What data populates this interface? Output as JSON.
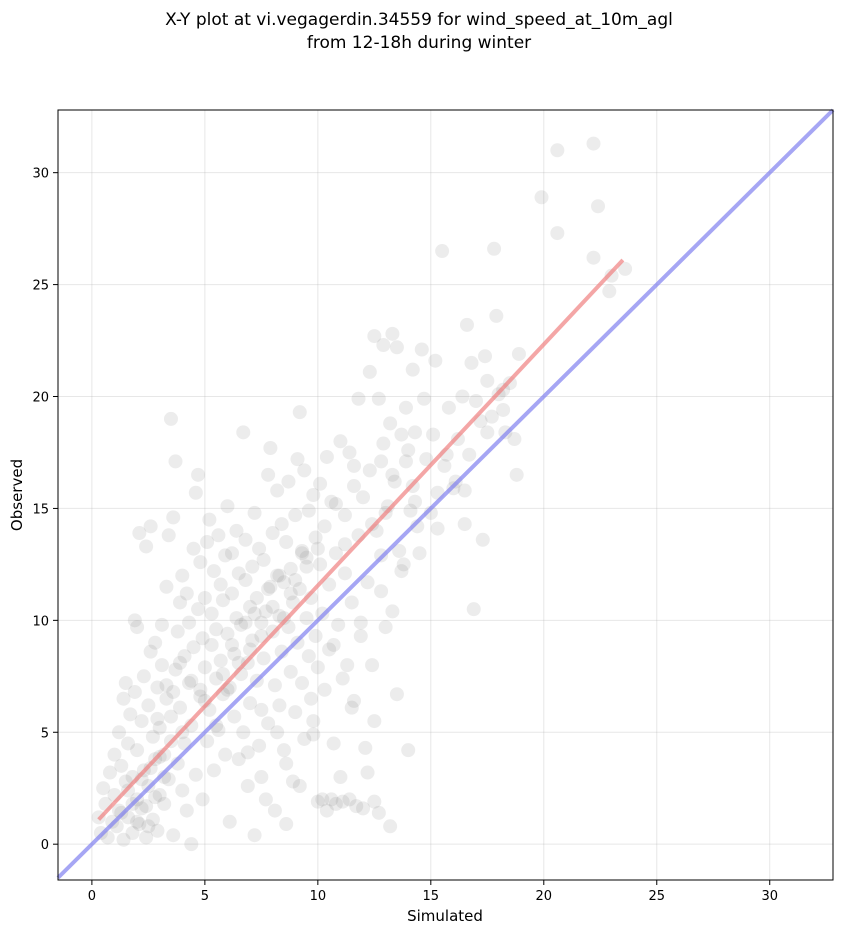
{
  "chart_data": {
    "type": "scatter",
    "title_line1": "X-Y plot at vi.vegagerdin.34559 for wind_speed_at_10m_agl",
    "title_line2": "from 12-18h during winter",
    "xlabel": "Simulated",
    "ylabel": "Observed",
    "xlim": [
      -1.5,
      32.8
    ],
    "ylim": [
      -1.6,
      32.8
    ],
    "xticks": [
      0,
      5,
      10,
      15,
      20,
      25,
      30
    ],
    "yticks": [
      0,
      5,
      10,
      15,
      20,
      25,
      30
    ],
    "grid": true,
    "point_color": "#808080",
    "point_opacity": 0.15,
    "fit_line": {
      "color": "#f08080",
      "x": [
        0.3,
        23.5
      ],
      "y": [
        1.1,
        26.1
      ]
    },
    "identity_line": {
      "color": "#8080f0",
      "x": [
        -1.5,
        32.8
      ],
      "y": [
        -1.5,
        32.8
      ]
    },
    "points": [
      [
        0.3,
        1.2
      ],
      [
        0.4,
        0.5
      ],
      [
        0.5,
        2.5
      ],
      [
        0.6,
        1.8
      ],
      [
        0.7,
        0.3
      ],
      [
        0.8,
        3.2
      ],
      [
        0.9,
        1.0
      ],
      [
        1.0,
        4.0
      ],
      [
        1.0,
        2.2
      ],
      [
        1.1,
        0.8
      ],
      [
        1.2,
        5.0
      ],
      [
        1.2,
        1.5
      ],
      [
        1.3,
        3.5
      ],
      [
        1.4,
        6.5
      ],
      [
        1.4,
        0.2
      ],
      [
        1.5,
        2.8
      ],
      [
        1.5,
        7.2
      ],
      [
        1.6,
        4.5
      ],
      [
        1.6,
        1.2
      ],
      [
        1.7,
        5.8
      ],
      [
        1.8,
        0.5
      ],
      [
        1.8,
        3.0
      ],
      [
        1.9,
        10.0
      ],
      [
        1.9,
        6.8
      ],
      [
        2.0,
        2.0
      ],
      [
        2.0,
        9.7
      ],
      [
        2.0,
        4.2
      ],
      [
        2.1,
        0.9
      ],
      [
        2.1,
        13.9
      ],
      [
        2.2,
        5.5
      ],
      [
        2.2,
        1.6
      ],
      [
        2.3,
        7.5
      ],
      [
        2.3,
        3.3
      ],
      [
        2.4,
        13.3
      ],
      [
        2.4,
        0.3
      ],
      [
        2.5,
        6.2
      ],
      [
        2.5,
        2.6
      ],
      [
        2.6,
        14.2
      ],
      [
        2.6,
        8.6
      ],
      [
        2.7,
        4.8
      ],
      [
        2.7,
        1.1
      ],
      [
        2.8,
        9.0
      ],
      [
        2.8,
        3.8
      ],
      [
        2.9,
        7.0
      ],
      [
        2.9,
        0.6
      ],
      [
        3.0,
        5.2
      ],
      [
        3.0,
        2.2
      ],
      [
        3.1,
        9.8
      ],
      [
        3.1,
        8.0
      ],
      [
        3.2,
        4.0
      ],
      [
        3.2,
        1.8
      ],
      [
        3.3,
        6.5
      ],
      [
        3.3,
        11.5
      ],
      [
        3.4,
        2.9
      ],
      [
        3.4,
        13.8
      ],
      [
        3.5,
        19.0
      ],
      [
        3.5,
        5.7
      ],
      [
        3.6,
        14.6
      ],
      [
        3.6,
        0.4
      ],
      [
        3.7,
        7.8
      ],
      [
        3.7,
        17.1
      ],
      [
        3.8,
        3.6
      ],
      [
        3.8,
        9.5
      ],
      [
        3.9,
        10.8
      ],
      [
        3.9,
        6.1
      ],
      [
        4.0,
        2.4
      ],
      [
        4.0,
        12.0
      ],
      [
        4.1,
        8.4
      ],
      [
        4.1,
        4.5
      ],
      [
        4.2,
        11.2
      ],
      [
        4.2,
        1.5
      ],
      [
        4.3,
        7.2
      ],
      [
        4.3,
        9.9
      ],
      [
        4.4,
        0.0
      ],
      [
        4.4,
        5.3
      ],
      [
        4.5,
        13.2
      ],
      [
        4.5,
        8.8
      ],
      [
        4.6,
        15.7
      ],
      [
        4.6,
        3.1
      ],
      [
        4.7,
        16.5
      ],
      [
        4.7,
        10.5
      ],
      [
        4.8,
        6.6
      ],
      [
        4.8,
        12.6
      ],
      [
        4.9,
        2.0
      ],
      [
        4.9,
        9.2
      ],
      [
        5.0,
        7.9
      ],
      [
        5.0,
        11.0
      ],
      [
        5.1,
        4.6
      ],
      [
        5.1,
        13.5
      ],
      [
        5.2,
        14.5
      ],
      [
        5.2,
        6.0
      ],
      [
        5.3,
        8.9
      ],
      [
        5.3,
        10.3
      ],
      [
        5.4,
        3.3
      ],
      [
        5.4,
        12.2
      ],
      [
        5.5,
        7.4
      ],
      [
        5.5,
        9.6
      ],
      [
        5.6,
        13.8
      ],
      [
        5.6,
        5.1
      ],
      [
        5.7,
        11.6
      ],
      [
        5.7,
        8.2
      ],
      [
        5.8,
        6.7
      ],
      [
        5.8,
        10.9
      ],
      [
        5.9,
        4.0
      ],
      [
        5.9,
        12.9
      ],
      [
        6.0,
        15.1
      ],
      [
        6.0,
        9.4
      ],
      [
        6.1,
        1.0
      ],
      [
        6.1,
        7.0
      ],
      [
        6.2,
        11.2
      ],
      [
        6.2,
        13.0
      ],
      [
        6.3,
        5.7
      ],
      [
        6.3,
        8.5
      ],
      [
        6.4,
        10.1
      ],
      [
        6.4,
        14.0
      ],
      [
        6.5,
        3.8
      ],
      [
        6.5,
        12.1
      ],
      [
        6.6,
        7.6
      ],
      [
        6.6,
        9.8
      ],
      [
        6.7,
        18.4
      ],
      [
        6.7,
        5.0
      ],
      [
        6.8,
        11.8
      ],
      [
        6.8,
        13.6
      ],
      [
        6.9,
        8.1
      ],
      [
        6.9,
        2.6
      ],
      [
        7.0,
        10.6
      ],
      [
        7.0,
        6.3
      ],
      [
        7.1,
        12.4
      ],
      [
        7.1,
        9.1
      ],
      [
        7.2,
        14.8
      ],
      [
        7.2,
        0.4
      ],
      [
        7.3,
        7.3
      ],
      [
        7.3,
        11.0
      ],
      [
        7.4,
        13.2
      ],
      [
        7.4,
        4.4
      ],
      [
        7.5,
        9.9
      ],
      [
        7.5,
        6.0
      ],
      [
        7.6,
        12.7
      ],
      [
        7.6,
        8.3
      ],
      [
        7.7,
        2.0
      ],
      [
        7.7,
        10.4
      ],
      [
        7.8,
        16.5
      ],
      [
        7.8,
        5.4
      ],
      [
        7.9,
        17.7
      ],
      [
        7.9,
        11.5
      ],
      [
        8.0,
        9.5
      ],
      [
        8.0,
        13.9
      ],
      [
        8.1,
        7.1
      ],
      [
        8.1,
        1.5
      ],
      [
        8.2,
        12.0
      ],
      [
        8.2,
        15.8
      ],
      [
        8.3,
        10.2
      ],
      [
        8.3,
        6.2
      ],
      [
        8.4,
        14.3
      ],
      [
        8.4,
        8.6
      ],
      [
        8.5,
        4.2
      ],
      [
        8.5,
        11.7
      ],
      [
        8.6,
        13.5
      ],
      [
        8.6,
        0.9
      ],
      [
        8.7,
        9.7
      ],
      [
        8.7,
        16.2
      ],
      [
        8.8,
        7.7
      ],
      [
        8.8,
        12.3
      ],
      [
        8.9,
        2.8
      ],
      [
        8.9,
        10.8
      ],
      [
        9.0,
        14.7
      ],
      [
        9.0,
        5.9
      ],
      [
        9.1,
        17.2
      ],
      [
        9.1,
        9.0
      ],
      [
        9.2,
        19.3
      ],
      [
        9.2,
        11.4
      ],
      [
        9.3,
        7.2
      ],
      [
        9.3,
        13.1
      ],
      [
        9.4,
        16.7
      ],
      [
        9.4,
        4.7
      ],
      [
        9.5,
        10.1
      ],
      [
        9.5,
        12.8
      ],
      [
        9.6,
        8.4
      ],
      [
        9.6,
        14.9
      ],
      [
        9.7,
        6.5
      ],
      [
        9.7,
        11.0
      ],
      [
        9.8,
        15.6
      ],
      [
        9.8,
        5.5
      ],
      [
        9.9,
        9.3
      ],
      [
        9.9,
        13.7
      ],
      [
        10.0,
        1.9
      ],
      [
        10.0,
        7.9
      ],
      [
        10.1,
        12.5
      ],
      [
        10.1,
        16.1
      ],
      [
        10.2,
        10.3
      ],
      [
        10.2,
        2.0
      ],
      [
        10.3,
        14.2
      ],
      [
        10.3,
        6.9
      ],
      [
        10.4,
        17.3
      ],
      [
        10.4,
        1.5
      ],
      [
        10.5,
        11.6
      ],
      [
        10.5,
        8.7
      ],
      [
        10.6,
        15.3
      ],
      [
        10.6,
        2.0
      ],
      [
        10.7,
        4.5
      ],
      [
        10.8,
        1.8
      ],
      [
        10.8,
        13.0
      ],
      [
        10.9,
        9.8
      ],
      [
        11.0,
        18.0
      ],
      [
        11.0,
        3.0
      ],
      [
        11.1,
        1.9
      ],
      [
        11.1,
        7.4
      ],
      [
        11.2,
        14.7
      ],
      [
        11.2,
        12.1
      ],
      [
        11.3,
        8.0
      ],
      [
        11.4,
        17.5
      ],
      [
        11.4,
        2.0
      ],
      [
        11.5,
        10.8
      ],
      [
        11.6,
        6.4
      ],
      [
        11.6,
        16.9
      ],
      [
        11.7,
        1.7
      ],
      [
        11.8,
        13.8
      ],
      [
        11.8,
        19.9
      ],
      [
        11.9,
        9.3
      ],
      [
        12.0,
        15.5
      ],
      [
        12.0,
        1.6
      ],
      [
        12.1,
        4.3
      ],
      [
        12.2,
        11.7
      ],
      [
        12.2,
        3.2
      ],
      [
        12.3,
        21.1
      ],
      [
        12.3,
        16.7
      ],
      [
        12.4,
        8.0
      ],
      [
        12.5,
        22.7
      ],
      [
        12.5,
        1.9
      ],
      [
        12.6,
        14.0
      ],
      [
        12.7,
        19.9
      ],
      [
        12.7,
        1.4
      ],
      [
        12.8,
        12.9
      ],
      [
        12.9,
        22.3
      ],
      [
        12.9,
        17.9
      ],
      [
        13.0,
        9.7
      ],
      [
        13.1,
        15.1
      ],
      [
        13.2,
        0.8
      ],
      [
        13.2,
        18.8
      ],
      [
        13.3,
        22.8
      ],
      [
        13.3,
        10.4
      ],
      [
        13.4,
        16.2
      ],
      [
        13.5,
        22.2
      ],
      [
        13.5,
        6.7
      ],
      [
        13.6,
        13.1
      ],
      [
        13.7,
        18.3
      ],
      [
        13.8,
        12.5
      ],
      [
        13.9,
        17.1
      ],
      [
        13.9,
        19.5
      ],
      [
        14.0,
        4.2
      ],
      [
        14.1,
        14.9
      ],
      [
        14.2,
        21.2
      ],
      [
        14.2,
        16.0
      ],
      [
        14.3,
        18.4
      ],
      [
        14.4,
        14.2
      ],
      [
        14.6,
        22.1
      ],
      [
        14.7,
        19.9
      ],
      [
        14.8,
        17.2
      ],
      [
        15.0,
        14.8
      ],
      [
        15.1,
        18.3
      ],
      [
        15.2,
        21.6
      ],
      [
        15.3,
        15.7
      ],
      [
        15.5,
        26.5
      ],
      [
        15.6,
        16.9
      ],
      [
        15.8,
        19.5
      ],
      [
        16.0,
        15.9
      ],
      [
        16.2,
        18.1
      ],
      [
        16.4,
        20.0
      ],
      [
        16.5,
        14.3
      ],
      [
        16.6,
        23.2
      ],
      [
        16.7,
        17.4
      ],
      [
        16.8,
        21.5
      ],
      [
        16.9,
        10.5
      ],
      [
        17.0,
        19.8
      ],
      [
        17.2,
        18.9
      ],
      [
        17.3,
        13.6
      ],
      [
        17.4,
        21.8
      ],
      [
        17.5,
        20.7
      ],
      [
        17.7,
        19.1
      ],
      [
        17.8,
        26.6
      ],
      [
        17.9,
        23.6
      ],
      [
        18.0,
        20.1
      ],
      [
        18.2,
        19.4
      ],
      [
        18.3,
        18.4
      ],
      [
        18.5,
        20.6
      ],
      [
        18.7,
        18.1
      ],
      [
        18.8,
        16.5
      ],
      [
        18.9,
        21.9
      ],
      [
        19.9,
        28.9
      ],
      [
        20.6,
        31.0
      ],
      [
        20.6,
        27.3
      ],
      [
        22.2,
        31.3
      ],
      [
        22.2,
        26.2
      ],
      [
        22.4,
        28.5
      ],
      [
        22.9,
        24.7
      ],
      [
        23.0,
        25.4
      ],
      [
        23.6,
        25.7
      ],
      [
        1.6,
        2.4
      ],
      [
        2.0,
        1.0
      ],
      [
        2.2,
        2.9
      ],
      [
        2.4,
        1.7
      ],
      [
        2.6,
        3.4
      ],
      [
        2.8,
        2.1
      ],
      [
        3.0,
        3.9
      ],
      [
        1.8,
        1.8
      ],
      [
        2.5,
        0.8
      ],
      [
        3.2,
        3.0
      ],
      [
        3.5,
        4.6
      ],
      [
        1.3,
        1.4
      ],
      [
        2.9,
        5.6
      ],
      [
        4.0,
        5.0
      ],
      [
        3.6,
        6.8
      ],
      [
        5.0,
        6.4
      ],
      [
        5.5,
        5.3
      ],
      [
        6.0,
        6.9
      ],
      [
        6.5,
        8.1
      ],
      [
        7.0,
        8.7
      ],
      [
        7.5,
        9.3
      ],
      [
        8.0,
        10.6
      ],
      [
        8.5,
        10.1
      ],
      [
        9.0,
        11.8
      ],
      [
        9.5,
        12.4
      ],
      [
        10.0,
        13.2
      ],
      [
        7.2,
        10.3
      ],
      [
        7.8,
        11.4
      ],
      [
        8.3,
        12.0
      ],
      [
        8.8,
        11.2
      ],
      [
        9.3,
        13.0
      ],
      [
        6.8,
        9.9
      ],
      [
        6.2,
        8.9
      ],
      [
        5.8,
        7.6
      ],
      [
        4.8,
        6.9
      ],
      [
        4.4,
        7.3
      ],
      [
        3.9,
        8.1
      ],
      [
        3.3,
        7.1
      ],
      [
        6.9,
        4.1
      ],
      [
        7.5,
        3.0
      ],
      [
        8.6,
        3.6
      ],
      [
        9.2,
        2.6
      ],
      [
        8.2,
        5.0
      ],
      [
        9.8,
        4.9
      ],
      [
        11.5,
        6.1
      ],
      [
        12.5,
        5.5
      ],
      [
        10.7,
        8.9
      ],
      [
        11.9,
        9.9
      ],
      [
        12.8,
        11.3
      ],
      [
        13.7,
        12.2
      ],
      [
        14.5,
        13.0
      ],
      [
        15.3,
        14.1
      ],
      [
        16.5,
        15.8
      ],
      [
        11.2,
        13.4
      ],
      [
        12.4,
        14.3
      ],
      [
        13.3,
        16.5
      ],
      [
        14.0,
        17.6
      ],
      [
        13.0,
        14.8
      ],
      [
        10.8,
        15.2
      ],
      [
        11.6,
        16.0
      ],
      [
        12.8,
        17.1
      ],
      [
        14.3,
        15.3
      ],
      [
        15.7,
        17.4
      ],
      [
        16.1,
        16.2
      ],
      [
        17.5,
        18.4
      ],
      [
        18.2,
        20.3
      ]
    ]
  }
}
